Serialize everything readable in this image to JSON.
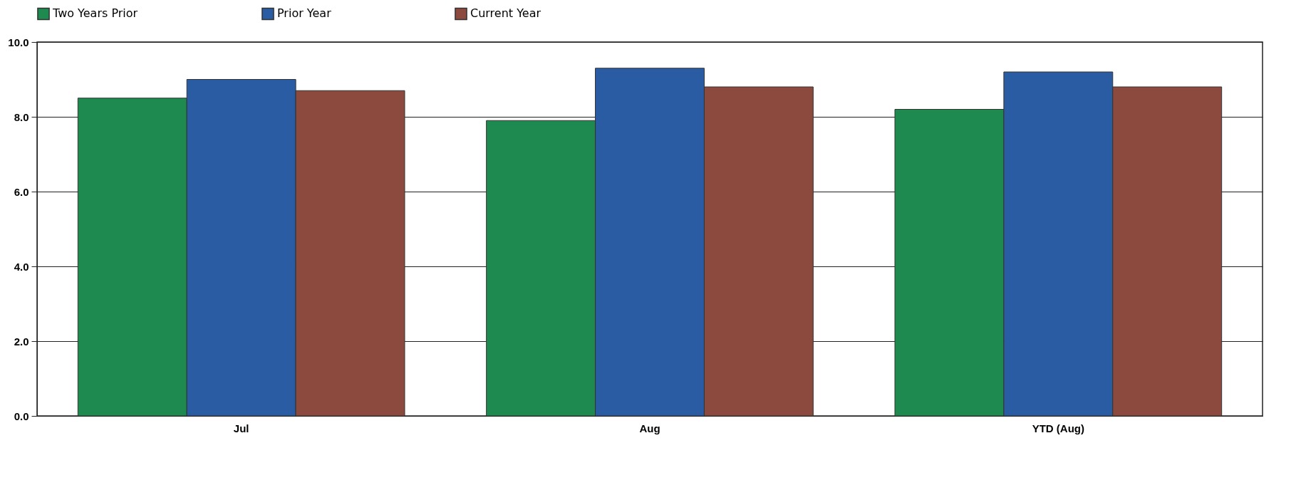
{
  "chart_data": {
    "type": "bar",
    "categories": [
      "Jul",
      "Aug",
      "YTD (Aug)"
    ],
    "series": [
      {
        "name": "Two Years Prior",
        "color": "#1e8a4f",
        "values": [
          8.5,
          7.9,
          8.2
        ]
      },
      {
        "name": "Prior Year",
        "color": "#2a5ca3",
        "values": [
          9.0,
          9.3,
          9.2
        ]
      },
      {
        "name": "Current Year",
        "color": "#8c4a3e",
        "values": [
          8.7,
          8.8,
          8.8
        ]
      }
    ],
    "ylim": [
      0,
      10
    ],
    "yticks": [
      {
        "value": 0,
        "label": "0.0"
      },
      {
        "value": 2,
        "label": "2.0"
      },
      {
        "value": 4,
        "label": "4.0"
      },
      {
        "value": 6,
        "label": "6.0"
      },
      {
        "value": 8,
        "label": "8.0"
      },
      {
        "value": 10,
        "label": "10.0"
      }
    ],
    "grid": "y",
    "legend": "top"
  }
}
